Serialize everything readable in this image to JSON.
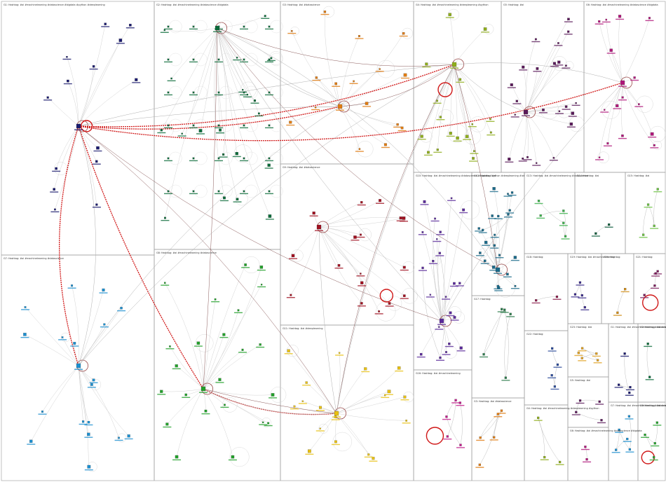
{
  "graph": {
    "groups": [
      {
        "label": "G1: Hashtag: #ai #machinelearning #datascience #bigdata #python #deeplearning",
        "color": "#1a1a6e"
      },
      {
        "label": "G2: Hashtag: #ai #machinelearning #datascience #bigdata",
        "color": "#0b6b3a"
      },
      {
        "label": "G3: Hashtag: #ai #datascience",
        "color": "#e07b10"
      },
      {
        "label": "G4: Hashtag: #ai #machinelearning #deeplearning #python",
        "color": "#8fae1b"
      },
      {
        "label": "G5: Hashtag: #ai",
        "color": "#5a1a5a"
      },
      {
        "label": "G6: Hashtag: #ai #machinelearning #datascience #bigdata",
        "color": "#b0167a"
      },
      {
        "label": "G7: Hashtag: #ai #machinelearning #datascience",
        "color": "#1b8fd0"
      },
      {
        "label": "G8: Hashtag: #ai #machinelearning #datascience",
        "color": "#22a02a"
      },
      {
        "label": "G9: Hashtag: #ai #datascience",
        "color": "#a01020"
      },
      {
        "label": "G10: Hashtag: #ai #machinelearning #datascience #bigdata #python #deeplearning #iot",
        "color": "#5a2a9a"
      },
      {
        "label": "G11: Hashtag: #ai #deeplearning",
        "color": "#e8c010"
      },
      {
        "label": "G12: Hashtag: #ai",
        "color": "#1a6a8a"
      },
      {
        "label": "G13: Hashtag: #ai #machinelearning #datascience",
        "color": "#3ab04a"
      },
      {
        "label": "G14: Hashtag: #ai",
        "color": "#0a5a3a"
      },
      {
        "label": "G15: Hashtag: #ai",
        "color": "#6ac040"
      },
      {
        "label": "G16: Hashtag: #ai #machinelearning",
        "color": "#c01a8a"
      },
      {
        "label": "G17: Hashtag:",
        "color": "#2a7a4a"
      },
      {
        "label": "G18: Hashtag:",
        "color": "#8a1a4a"
      },
      {
        "label": "G19: Hashtag: #ai #machinelearning",
        "color": "#3a2a8a"
      },
      {
        "label": "G20: Hashtag:",
        "color": "#d08a10"
      },
      {
        "label": "G21: Hashtag:",
        "color": "#7a1a5a"
      },
      {
        "label": "G22: Hashtag:",
        "color": "#2a4a9a"
      },
      {
        "label": "G23: Hashtag: #ai",
        "color": "#e0a020"
      }
    ],
    "edge_color_strong": "#d01818",
    "edge_color_light": "#c8c8c8",
    "edge_color_mid": "#9a4a4a"
  }
}
